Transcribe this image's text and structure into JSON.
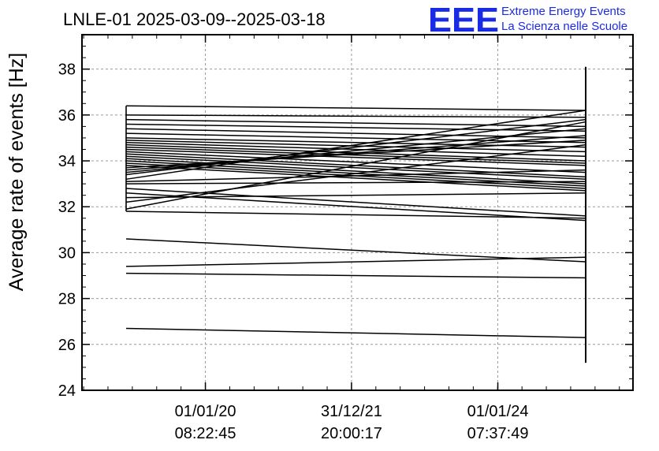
{
  "header": {
    "title": "LNLE-01 2025-03-09--2025-03-18",
    "brand_logo": "EEE",
    "brand_line1": "Extreme Energy Events",
    "brand_line2": "La Scienza nelle Scuole"
  },
  "colors": {
    "brand": "#1a2be6",
    "line": "#000000",
    "grid": "#999999"
  },
  "chart_data": {
    "type": "line",
    "title": "LNLE-01 2025-03-09--2025-03-18",
    "xlabel": "",
    "ylabel": "Average rate of events [Hz]",
    "ylim": [
      24,
      39.5
    ],
    "yticks": [
      24,
      26,
      28,
      30,
      32,
      34,
      36,
      38
    ],
    "ytick_labels": [
      "24",
      "26",
      "28",
      "30",
      "32",
      "34",
      "36",
      "38"
    ],
    "xticks": [
      {
        "date": "01/01/20",
        "time": "08:22:45"
      },
      {
        "date": "31/12/21",
        "time": "20:00:17"
      },
      {
        "date": "01/01/24",
        "time": "07:37:49"
      }
    ],
    "grid": true,
    "x_start": "2018-12-01",
    "x_end": "2025-03-15",
    "start_values": [
      36.4,
      36.0,
      35.8,
      35.6,
      35.4,
      35.2,
      35.0,
      34.9,
      34.8,
      34.7,
      34.6,
      34.5,
      34.4,
      34.3,
      34.2,
      34.1,
      34.0,
      33.9,
      33.8,
      33.7,
      33.6,
      33.5,
      33.4,
      33.2,
      33.1,
      33.0,
      32.8,
      32.6,
      32.4,
      32.2,
      31.9,
      31.8,
      30.6,
      29.4,
      29.1,
      26.7
    ],
    "end_values": [
      36.2,
      35.9,
      35.5,
      35.3,
      35.0,
      34.8,
      34.6,
      34.4,
      34.2,
      34.0,
      33.9,
      33.8,
      33.5,
      33.3,
      33.2,
      33.0,
      32.9,
      32.8,
      32.7,
      34.9,
      35.1,
      35.4,
      35.8,
      36.2,
      33.6,
      33.1,
      31.6,
      31.4,
      32.6,
      34.7,
      35.7,
      31.5,
      29.6,
      29.8,
      28.9,
      26.3
    ],
    "end_spike": [
      25.2,
      38.1
    ]
  }
}
